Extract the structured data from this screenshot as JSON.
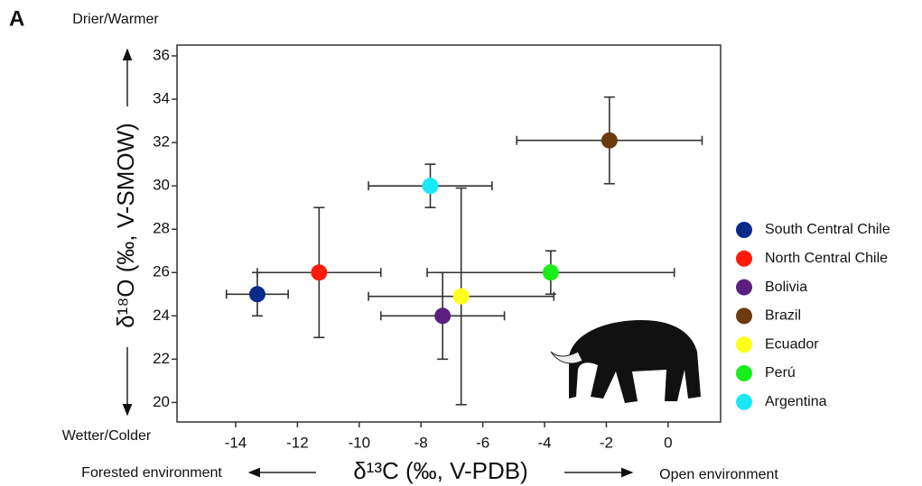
{
  "chart_data": {
    "type": "scatter",
    "panel_label": "A",
    "annotations": {
      "top": "Drier/Warmer",
      "bottom": "Wetter/Colder",
      "left": "Forested environment",
      "right": "Open environment"
    },
    "xlabel": "δ¹³C (‰, V-PDB)",
    "ylabel": "δ¹⁸O (‰, V-SMOW)",
    "xlim": [
      -15.9,
      1.7
    ],
    "xticks": [
      -14,
      -12,
      -10,
      -8,
      -6,
      -4,
      -2,
      0
    ],
    "ylim": [
      19.1,
      36.5
    ],
    "yticks": [
      20,
      22,
      24,
      26,
      28,
      30,
      32,
      34,
      36
    ],
    "series": [
      {
        "name": "South Central Chile",
        "color": "#0a2a8a",
        "x": [
          -13.3
        ],
        "y": [
          25
        ],
        "xerr": [
          1.0
        ],
        "yerr": [
          1.0
        ]
      },
      {
        "name": "North Central Chile",
        "color": "#ff1a0a",
        "x": [
          -11.3
        ],
        "y": [
          26
        ],
        "xerr": [
          2.0
        ],
        "yerr": [
          3.0
        ]
      },
      {
        "name": "Bolivia",
        "color": "#5a1f80",
        "x": [
          -7.3
        ],
        "y": [
          24
        ],
        "xerr": [
          2.0
        ],
        "yerr": [
          2.0
        ]
      },
      {
        "name": "Brazil",
        "color": "#6b3a0e",
        "x": [
          -1.9
        ],
        "y": [
          32.1
        ],
        "xerr": [
          3.0
        ],
        "yerr": [
          2.0
        ]
      },
      {
        "name": "Ecuador",
        "color": "#ffff1a",
        "x": [
          -6.7
        ],
        "y": [
          24.9
        ],
        "xerr": [
          3.0
        ],
        "yerr": [
          5.0
        ]
      },
      {
        "name": "Perú",
        "color": "#1aee1a",
        "x": [
          -3.8
        ],
        "y": [
          26
        ],
        "xerr": [
          4.0
        ],
        "yerr": [
          1.0
        ]
      },
      {
        "name": "Argentina",
        "color": "#1ae8f5",
        "x": [
          -7.7
        ],
        "y": [
          30
        ],
        "xerr": [
          2.0
        ],
        "yerr": [
          1.0
        ]
      }
    ]
  }
}
